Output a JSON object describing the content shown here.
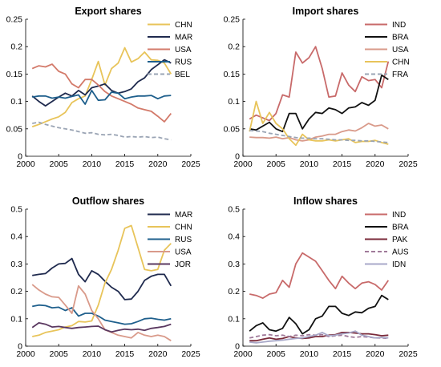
{
  "chart_data": [
    {
      "type": "line",
      "title": "Export shares",
      "xlabel": "",
      "ylabel": "",
      "xlim": [
        2000,
        2025
      ],
      "ylim": [
        0,
        0.25
      ],
      "xticks": [
        "2000",
        "2005",
        "2010",
        "2015",
        "2020",
        "2025"
      ],
      "yticks": [
        "0",
        "0.05",
        "0.1",
        "0.15",
        "0.2",
        "0.25"
      ],
      "legend": "top-right",
      "x": [
        2001,
        2002,
        2003,
        2004,
        2005,
        2006,
        2007,
        2008,
        2009,
        2010,
        2011,
        2012,
        2013,
        2014,
        2015,
        2016,
        2017,
        2018,
        2019,
        2020,
        2021,
        2022
      ],
      "series": [
        {
          "name": "CHN",
          "color": "#E8C45A",
          "dash": false,
          "values": [
            0.054,
            0.058,
            0.063,
            0.068,
            0.072,
            0.08,
            0.098,
            0.105,
            0.11,
            0.14,
            0.173,
            0.13,
            0.16,
            0.17,
            0.198,
            0.172,
            0.178,
            0.19,
            0.176,
            0.175,
            0.17,
            0.15
          ]
        },
        {
          "name": "MAR",
          "color": "#1F2A4E",
          "dash": false,
          "values": [
            0.11,
            0.1,
            0.092,
            0.1,
            0.108,
            0.115,
            0.11,
            0.12,
            0.112,
            0.125,
            0.128,
            0.132,
            0.12,
            0.115,
            0.118,
            0.123,
            0.136,
            0.143,
            0.158,
            0.167,
            0.176,
            0.17
          ]
        },
        {
          "name": "USA",
          "color": "#D37A6A",
          "dash": false,
          "values": [
            0.16,
            0.165,
            0.163,
            0.168,
            0.155,
            0.15,
            0.132,
            0.125,
            0.14,
            0.14,
            0.13,
            0.118,
            0.11,
            0.105,
            0.1,
            0.095,
            0.088,
            0.085,
            0.082,
            0.073,
            0.063,
            0.078
          ]
        },
        {
          "name": "RUS",
          "color": "#1E5F8C",
          "dash": false,
          "values": [
            0.108,
            0.11,
            0.11,
            0.106,
            0.108,
            0.106,
            0.109,
            0.112,
            0.095,
            0.12,
            0.102,
            0.103,
            0.117,
            0.115,
            0.105,
            0.108,
            0.11,
            0.11,
            0.111,
            0.105,
            0.11,
            0.111
          ]
        },
        {
          "name": "BEL",
          "color": "#9AA4B4",
          "dash": true,
          "values": [
            0.06,
            0.062,
            0.058,
            0.055,
            0.052,
            0.05,
            0.048,
            0.045,
            0.042,
            0.043,
            0.04,
            0.039,
            0.04,
            0.038,
            0.035,
            0.036,
            0.035,
            0.036,
            0.034,
            0.035,
            0.032,
            0.03
          ]
        }
      ]
    },
    {
      "type": "line",
      "title": "Import shares",
      "xlabel": "",
      "ylabel": "",
      "xlim": [
        2000,
        2025
      ],
      "ylim": [
        0,
        0.25
      ],
      "xticks": [
        "2000",
        "2005",
        "2010",
        "2015",
        "2020",
        "2025"
      ],
      "yticks": [
        "0",
        "0.05",
        "0.1",
        "0.15",
        "0.2",
        "0.25"
      ],
      "legend": "top-right",
      "x": [
        2001,
        2002,
        2003,
        2004,
        2005,
        2006,
        2007,
        2008,
        2009,
        2010,
        2011,
        2012,
        2013,
        2014,
        2015,
        2016,
        2017,
        2018,
        2019,
        2020,
        2021,
        2022
      ],
      "series": [
        {
          "name": "IND",
          "color": "#C86A6A",
          "dash": false,
          "values": [
            0.068,
            0.075,
            0.07,
            0.065,
            0.078,
            0.112,
            0.108,
            0.19,
            0.17,
            0.18,
            0.2,
            0.16,
            0.108,
            0.11,
            0.152,
            0.13,
            0.118,
            0.145,
            0.138,
            0.14,
            0.125,
            0.173
          ]
        },
        {
          "name": "BRA",
          "color": "#111111",
          "dash": false,
          "values": [
            0.05,
            0.048,
            0.055,
            0.062,
            0.05,
            0.045,
            0.078,
            0.078,
            0.05,
            0.068,
            0.08,
            0.078,
            0.088,
            0.085,
            0.078,
            0.088,
            0.09,
            0.098,
            0.093,
            0.102,
            0.148,
            0.14
          ]
        },
        {
          "name": "USA",
          "color": "#D99A8A",
          "dash": false,
          "values": [
            0.035,
            0.034,
            0.034,
            0.033,
            0.035,
            0.032,
            0.034,
            0.03,
            0.028,
            0.03,
            0.035,
            0.037,
            0.04,
            0.04,
            0.045,
            0.048,
            0.046,
            0.052,
            0.06,
            0.055,
            0.057,
            0.05
          ]
        },
        {
          "name": "CHN",
          "color": "#E8C45A",
          "dash": false,
          "values": [
            0.045,
            0.1,
            0.06,
            0.08,
            0.06,
            0.05,
            0.032,
            0.02,
            0.04,
            0.03,
            0.028,
            0.028,
            0.03,
            0.028,
            0.03,
            0.032,
            0.025,
            0.027,
            0.027,
            0.029,
            0.025,
            0.022
          ]
        },
        {
          "name": "FRA",
          "color": "#9AA4B4",
          "dash": true,
          "values": [
            0.047,
            0.046,
            0.045,
            0.042,
            0.04,
            0.038,
            0.036,
            0.034,
            0.033,
            0.033,
            0.032,
            0.032,
            0.031,
            0.03,
            0.03,
            0.029,
            0.029,
            0.028,
            0.028,
            0.027,
            0.026,
            0.025
          ]
        }
      ]
    },
    {
      "type": "line",
      "title": "Outflow shares",
      "xlabel": "",
      "ylabel": "",
      "xlim": [
        2000,
        2025
      ],
      "ylim": [
        0,
        0.5
      ],
      "xticks": [
        "2000",
        "2005",
        "2010",
        "2015",
        "2020",
        "2025"
      ],
      "yticks": [
        "0",
        "0.1",
        "0.2",
        "0.3",
        "0.4",
        "0.5"
      ],
      "legend": "top-right",
      "x": [
        2001,
        2002,
        2003,
        2004,
        2005,
        2006,
        2007,
        2008,
        2009,
        2010,
        2011,
        2012,
        2013,
        2014,
        2015,
        2016,
        2017,
        2018,
        2019,
        2020,
        2021,
        2022
      ],
      "series": [
        {
          "name": "MAR",
          "color": "#1F2A4E",
          "dash": false,
          "values": [
            0.258,
            0.262,
            0.265,
            0.285,
            0.3,
            0.302,
            0.32,
            0.262,
            0.235,
            0.275,
            0.262,
            0.237,
            0.215,
            0.2,
            0.17,
            0.172,
            0.2,
            0.24,
            0.255,
            0.262,
            0.262,
            0.22
          ]
        },
        {
          "name": "CHN",
          "color": "#E8C45A",
          "dash": false,
          "values": [
            0.035,
            0.04,
            0.05,
            0.055,
            0.06,
            0.07,
            0.075,
            0.09,
            0.088,
            0.092,
            0.15,
            0.23,
            0.28,
            0.35,
            0.43,
            0.44,
            0.36,
            0.28,
            0.275,
            0.28,
            0.35,
            0.375
          ]
        },
        {
          "name": "RUS",
          "color": "#1E5F8C",
          "dash": false,
          "values": [
            0.145,
            0.15,
            0.148,
            0.14,
            0.142,
            0.13,
            0.14,
            0.11,
            0.12,
            0.12,
            0.11,
            0.095,
            0.09,
            0.085,
            0.08,
            0.082,
            0.09,
            0.1,
            0.102,
            0.098,
            0.095,
            0.1
          ]
        },
        {
          "name": "USA",
          "color": "#D99A8A",
          "dash": false,
          "values": [
            0.225,
            0.205,
            0.19,
            0.18,
            0.178,
            0.15,
            0.12,
            0.22,
            0.19,
            0.13,
            0.1,
            0.06,
            0.05,
            0.04,
            0.035,
            0.03,
            0.05,
            0.04,
            0.035,
            0.04,
            0.035,
            0.02
          ]
        },
        {
          "name": "JOR",
          "color": "#5A3860",
          "dash": false,
          "values": [
            0.068,
            0.085,
            0.08,
            0.07,
            0.072,
            0.068,
            0.065,
            0.068,
            0.07,
            0.072,
            0.073,
            0.06,
            0.052,
            0.058,
            0.062,
            0.06,
            0.062,
            0.058,
            0.065,
            0.068,
            0.072,
            0.08
          ]
        }
      ]
    },
    {
      "type": "line",
      "title": "Inflow shares",
      "xlabel": "",
      "ylabel": "",
      "xlim": [
        2000,
        2025
      ],
      "ylim": [
        0,
        0.5
      ],
      "xticks": [
        "2000",
        "2005",
        "2010",
        "2015",
        "2020",
        "2025"
      ],
      "yticks": [
        "0",
        "0.1",
        "0.2",
        "0.3",
        "0.4",
        "0.5"
      ],
      "legend": "top-right",
      "x": [
        2001,
        2002,
        2003,
        2004,
        2005,
        2006,
        2007,
        2008,
        2009,
        2010,
        2011,
        2012,
        2013,
        2014,
        2015,
        2016,
        2017,
        2018,
        2019,
        2020,
        2021,
        2022
      ],
      "series": [
        {
          "name": "IND",
          "color": "#C86A6A",
          "dash": false,
          "values": [
            0.19,
            0.185,
            0.175,
            0.19,
            0.195,
            0.24,
            0.215,
            0.3,
            0.34,
            0.325,
            0.31,
            0.275,
            0.24,
            0.21,
            0.255,
            0.23,
            0.21,
            0.23,
            0.235,
            0.225,
            0.205,
            0.24
          ]
        },
        {
          "name": "BRA",
          "color": "#111111",
          "dash": false,
          "values": [
            0.055,
            0.075,
            0.085,
            0.06,
            0.055,
            0.065,
            0.105,
            0.082,
            0.045,
            0.06,
            0.1,
            0.11,
            0.145,
            0.145,
            0.12,
            0.112,
            0.125,
            0.122,
            0.138,
            0.145,
            0.185,
            0.17
          ]
        },
        {
          "name": "PAK",
          "color": "#7A2A3A",
          "dash": false,
          "values": [
            0.02,
            0.02,
            0.025,
            0.03,
            0.025,
            0.028,
            0.035,
            0.03,
            0.028,
            0.03,
            0.035,
            0.035,
            0.04,
            0.042,
            0.05,
            0.05,
            0.048,
            0.045,
            0.045,
            0.042,
            0.038,
            0.04
          ]
        },
        {
          "name": "AUS",
          "color": "#A07A9A",
          "dash": true,
          "values": [
            0.03,
            0.035,
            0.04,
            0.042,
            0.038,
            0.04,
            0.035,
            0.04,
            0.038,
            0.042,
            0.04,
            0.042,
            0.035,
            0.038,
            0.04,
            0.035,
            0.032,
            0.035,
            0.033,
            0.03,
            0.03,
            0.028
          ]
        },
        {
          "name": "IDN",
          "color": "#A8A8C8",
          "dash": false,
          "values": [
            0.015,
            0.012,
            0.015,
            0.018,
            0.02,
            0.022,
            0.025,
            0.028,
            0.03,
            0.035,
            0.04,
            0.05,
            0.038,
            0.04,
            0.045,
            0.048,
            0.055,
            0.04,
            0.035,
            0.03,
            0.032,
            0.03
          ]
        }
      ]
    }
  ]
}
